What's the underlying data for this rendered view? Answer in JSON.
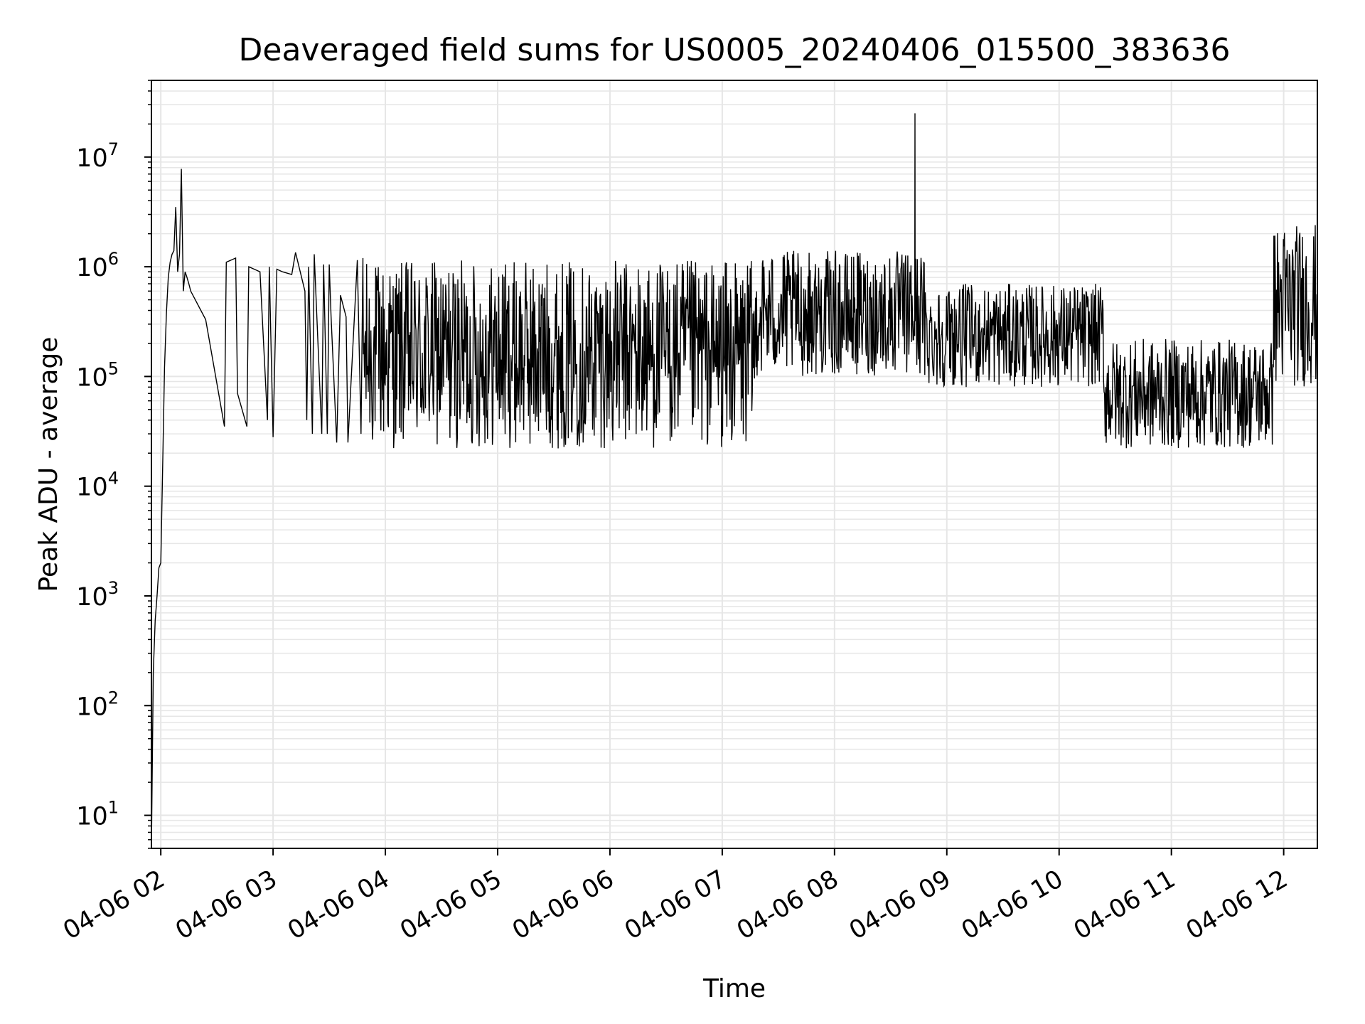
{
  "chart_data": {
    "type": "line",
    "title": "Deaveraged field sums for US0005_20240406_015500_383636",
    "xlabel": "Time",
    "ylabel": "Peak ADU - average",
    "yscale": "log",
    "ylim": [
      5,
      50000000
    ],
    "xlim": [
      "2024-04-06 01:55",
      "2024-04-06 12:18"
    ],
    "x_tick_labels": [
      "04-06 02",
      "04-06 03",
      "04-06 04",
      "04-06 05",
      "04-06 06",
      "04-06 07",
      "04-06 08",
      "04-06 09",
      "04-06 10",
      "04-06 11",
      "04-06 12"
    ],
    "x_tick_times": [
      "2024-04-06 02:00",
      "2024-04-06 03:00",
      "2024-04-06 04:00",
      "2024-04-06 05:00",
      "2024-04-06 06:00",
      "2024-04-06 07:00",
      "2024-04-06 08:00",
      "2024-04-06 09:00",
      "2024-04-06 10:00",
      "2024-04-06 11:00",
      "2024-04-06 12:00"
    ],
    "y_tick_labels": [
      {
        "base": "10",
        "exp": "1",
        "value": 10
      },
      {
        "base": "10",
        "exp": "2",
        "value": 100
      },
      {
        "base": "10",
        "exp": "3",
        "value": 1000
      },
      {
        "base": "10",
        "exp": "4",
        "value": 10000
      },
      {
        "base": "10",
        "exp": "5",
        "value": 100000
      },
      {
        "base": "10",
        "exp": "6",
        "value": 1000000
      },
      {
        "base": "10",
        "exp": "7",
        "value": 10000000
      }
    ],
    "grid": true,
    "line_color": "#000000",
    "grid_color": "#e6e6e6",
    "series": [
      {
        "x": [
          "2024-04-06 01:55",
          "2024-04-06 01:56",
          "2024-04-06 01:57",
          "2024-04-06 01:58",
          "2024-04-06 01:59",
          "2024-04-06 02:00",
          "2024-04-06 02:01",
          "2024-04-06 02:02",
          "2024-04-06 02:03",
          "2024-04-06 02:04",
          "2024-04-06 02:05",
          "2024-04-06 02:06",
          "2024-04-06 02:07",
          "2024-04-06 02:08",
          "2024-04-06 02:09",
          "2024-04-06 02:10",
          "2024-04-06 02:11",
          "2024-04-06 02:12",
          "2024-04-06 02:13",
          "2024-04-06 02:14",
          "2024-04-06 02:15",
          "2024-04-06 02:16",
          "2024-04-06 02:24",
          "2024-04-06 02:34",
          "2024-04-06 02:35",
          "2024-04-06 02:40",
          "2024-04-06 02:41",
          "2024-04-06 02:46",
          "2024-04-06 02:47",
          "2024-04-06 02:53",
          "2024-04-06 02:57",
          "2024-04-06 02:58",
          "2024-04-06 03:00",
          "2024-04-06 03:02",
          "2024-04-06 03:05",
          "2024-04-06 03:10",
          "2024-04-06 03:12",
          "2024-04-06 03:17",
          "2024-04-06 03:18",
          "2024-04-06 03:19",
          "2024-04-06 03:21",
          "2024-04-06 03:22",
          "2024-04-06 03:26",
          "2024-04-06 03:27",
          "2024-04-06 03:29",
          "2024-04-06 03:30",
          "2024-04-06 03:31",
          "2024-04-06 03:34",
          "2024-04-06 03:36",
          "2024-04-06 03:39",
          "2024-04-06 03:40",
          "2024-04-06 03:45",
          "2024-04-06 03:47",
          "2024-04-06 03:48"
        ],
        "y": [
          5,
          200,
          600,
          1000,
          1800,
          2000,
          15000,
          120000,
          380000,
          800000,
          1100000,
          1300000,
          1400000,
          3500000,
          900000,
          1300000,
          7800000,
          600000,
          900000,
          800000,
          700000,
          600000,
          330000,
          35000,
          1100000,
          1200000,
          70000,
          35000,
          1000000,
          900000,
          40000,
          1000000,
          28000,
          950000,
          900000,
          850000,
          1350000,
          600000,
          40000,
          1000000,
          30000,
          1300000,
          30000,
          1050000,
          30000,
          1050000,
          350000,
          25000,
          550000,
          350000,
          25000,
          1150000,
          30000,
          1200000
        ]
      }
    ]
  }
}
